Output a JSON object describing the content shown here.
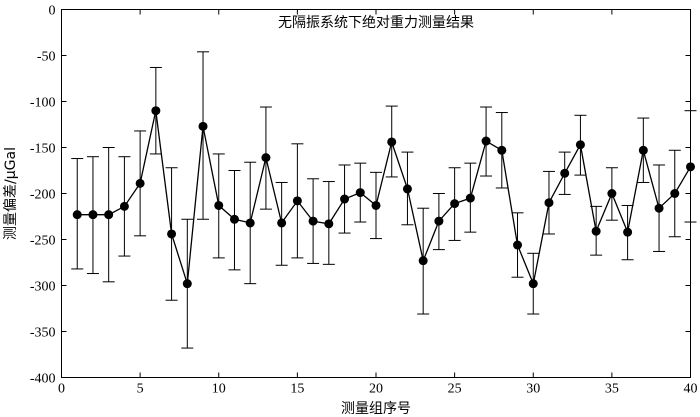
{
  "chart_data": {
    "type": "line",
    "title": "无隔振系统下绝对重力测量结果",
    "xlabel": "测量组序号",
    "ylabel": "测量偏差/μGal",
    "xlim": [
      0,
      40
    ],
    "ylim": [
      -400,
      0
    ],
    "xticks": [
      0,
      5,
      10,
      15,
      20,
      25,
      30,
      35,
      40
    ],
    "yticks": [
      0,
      -50,
      -100,
      -150,
      -200,
      -250,
      -300,
      -350,
      -400
    ],
    "xtick_labels": [
      "0",
      "5",
      "10",
      "15",
      "20",
      "25",
      "30",
      "35",
      "40"
    ],
    "ytick_labels": [
      "0",
      "-50",
      "-100",
      "-150",
      "-200",
      "-250",
      "-300",
      "-350",
      "-400"
    ],
    "grid": false,
    "legend": "none",
    "marker": "filled-circle",
    "color": "#000000",
    "x": [
      1,
      2,
      3,
      4,
      5,
      6,
      7,
      8,
      9,
      10,
      11,
      12,
      13,
      14,
      15,
      16,
      17,
      18,
      19,
      20,
      21,
      22,
      23,
      24,
      25,
      26,
      27,
      28,
      29,
      30,
      31,
      32,
      33,
      34,
      35,
      36,
      37,
      38,
      39,
      40
    ],
    "y": [
      -223,
      -223,
      -223,
      -214,
      -189,
      -110,
      -244,
      -298,
      -127,
      -213,
      -228,
      -232,
      -161,
      -232,
      -208,
      -230,
      -233,
      -206,
      -199,
      -213,
      -144,
      -195,
      -273,
      -230,
      -211,
      -205,
      -143,
      -153,
      -256,
      -298,
      -210,
      -178,
      -147,
      -241,
      -200,
      -242,
      -153,
      -216,
      -200,
      -171
    ],
    "err_upper": [
      -162,
      -160,
      -150,
      -160,
      -132,
      -63,
      -172,
      -228,
      -46,
      -157,
      -175,
      -166,
      -106,
      -188,
      -146,
      -184,
      -187,
      -169,
      -167,
      -177,
      -105,
      -155,
      -216,
      -200,
      -172,
      -167,
      -106,
      -112,
      -221,
      -265,
      -176,
      -155,
      -115,
      -214,
      -172,
      -213,
      -118,
      -169,
      -153,
      -110
    ],
    "err_lower": [
      -282,
      -287,
      -296,
      -268,
      -246,
      -157,
      -316,
      -368,
      -228,
      -270,
      -283,
      -298,
      -217,
      -278,
      -270,
      -276,
      -277,
      -243,
      -231,
      -249,
      -182,
      -234,
      -331,
      -261,
      -251,
      -242,
      -181,
      -194,
      -291,
      -331,
      -244,
      -201,
      -180,
      -267,
      -229,
      -272,
      -188,
      -263,
      -247,
      -231
    ]
  }
}
